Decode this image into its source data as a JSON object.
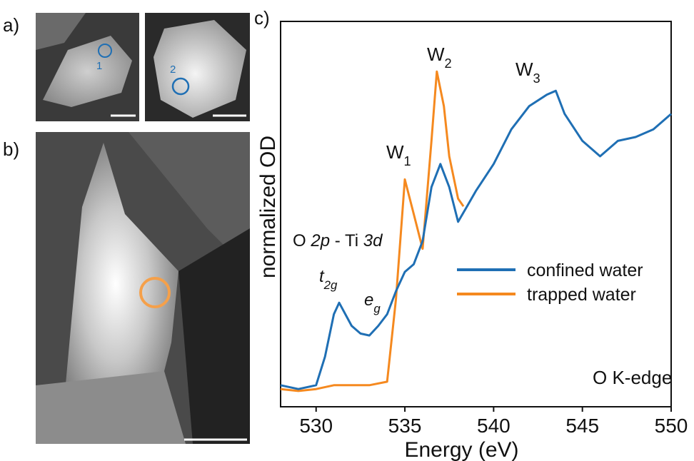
{
  "panels": {
    "a": "a)",
    "b": "b)",
    "c": "c)"
  },
  "image_labels": [
    "1",
    "2"
  ],
  "chart_data": {
    "type": "line",
    "x_label": "Energy (eV)",
    "y_label": "normalized OD",
    "xlim": [
      528,
      550
    ],
    "xticks": [
      530,
      535,
      540,
      545,
      550
    ],
    "ylim": [
      0,
      1
    ],
    "legend": "right",
    "series": [
      {
        "name": "confined water",
        "color": "#1f6fb4",
        "x": [
          528,
          529,
          530,
          530.5,
          531,
          531.3,
          532,
          532.5,
          533,
          533.5,
          534,
          534.5,
          535,
          535.5,
          536,
          536.5,
          537,
          537.5,
          538,
          538.5,
          539,
          540,
          541,
          542,
          543,
          543.5,
          544,
          545,
          546,
          547,
          548,
          549,
          550
        ],
        "values": [
          0.056,
          0.046,
          0.056,
          0.13,
          0.24,
          0.27,
          0.21,
          0.19,
          0.185,
          0.21,
          0.24,
          0.3,
          0.35,
          0.37,
          0.43,
          0.57,
          0.63,
          0.57,
          0.48,
          0.52,
          0.56,
          0.63,
          0.72,
          0.78,
          0.81,
          0.82,
          0.76,
          0.69,
          0.65,
          0.69,
          0.7,
          0.72,
          0.76
        ]
      },
      {
        "name": "trapped water",
        "color": "#f5891f",
        "x": [
          528,
          529,
          530,
          531,
          532,
          533,
          534,
          534.5,
          535,
          535.5,
          536,
          536.5,
          536.8,
          537.2,
          537.5,
          538,
          538.3
        ],
        "values": [
          0.046,
          0.041,
          0.046,
          0.056,
          0.056,
          0.056,
          0.065,
          0.28,
          0.59,
          0.5,
          0.41,
          0.69,
          0.87,
          0.78,
          0.65,
          0.54,
          0.52
        ]
      }
    ],
    "annotations": [
      {
        "parts": [
          {
            "text": "O "
          },
          {
            "text": "2p",
            "style": "italic"
          },
          {
            "text": " - Ti "
          },
          {
            "text": "3d",
            "style": "italic"
          }
        ]
      },
      {
        "parts": [
          {
            "text": "t",
            "style": "italic"
          },
          {
            "text": "2g",
            "style": "italic-sub"
          }
        ]
      },
      {
        "parts": [
          {
            "text": "e",
            "style": "italic"
          },
          {
            "text": "g",
            "style": "italic-sub"
          }
        ]
      },
      {
        "parts": [
          {
            "text": "W"
          },
          {
            "text": "1",
            "style": "sub"
          }
        ]
      },
      {
        "parts": [
          {
            "text": "W"
          },
          {
            "text": "2",
            "style": "sub"
          }
        ]
      },
      {
        "parts": [
          {
            "text": "W"
          },
          {
            "text": "3",
            "style": "sub"
          }
        ]
      },
      {
        "parts": [
          {
            "text": "O K-edge"
          }
        ]
      }
    ]
  }
}
